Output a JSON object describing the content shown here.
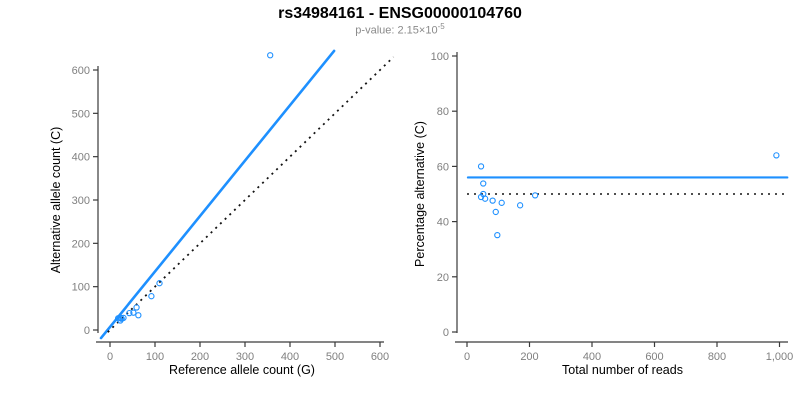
{
  "figure": {
    "title": "rs34984161 - ENSG00000104760",
    "subtitle_prefix": "p-value: 2.15×10",
    "subtitle_exponent": "-5"
  },
  "colors": {
    "accent_blue": "#1E90FF",
    "axis_line": "#3a3a3a",
    "tick_label": "#7f7f7f",
    "dotted_line": "#141414",
    "title_text": "#000000",
    "subtitle_text": "#8a8a8a"
  },
  "chart_data": [
    {
      "type": "scatter",
      "panel": "left",
      "xlabel": "Reference allele count (G)",
      "ylabel": "Alternative allele count (C)",
      "xlim": [
        0,
        600
      ],
      "ylim": [
        0,
        600
      ],
      "xticks": [
        0,
        100,
        200,
        300,
        400,
        500,
        600
      ],
      "xtick_labels": [
        "0",
        "100",
        "200",
        "300",
        "400",
        "500",
        "600"
      ],
      "yticks": [
        0,
        100,
        200,
        300,
        400,
        500,
        600
      ],
      "ytick_labels": [
        "0",
        "100",
        "200",
        "300",
        "400",
        "500",
        "600"
      ],
      "grid": false,
      "points": [
        [
          18,
          27
        ],
        [
          24,
          28
        ],
        [
          23,
          22
        ],
        [
          26,
          26
        ],
        [
          30,
          28
        ],
        [
          43,
          39
        ],
        [
          52,
          40
        ],
        [
          63,
          34
        ],
        [
          59,
          52
        ],
        [
          92,
          78
        ],
        [
          110,
          108
        ],
        [
          356,
          634
        ]
      ],
      "fit_line": {
        "style": "solid",
        "from": [
          -20,
          -18.5
        ],
        "to": [
          498,
          644
        ]
      },
      "identity_line": {
        "style": "dotted",
        "from": [
          -5,
          -5
        ],
        "to": [
          630,
          630
        ]
      }
    },
    {
      "type": "scatter",
      "panel": "right",
      "xlabel": "Total number of reads",
      "ylabel": "Percentage alternative (C)",
      "xlim": [
        0,
        1000
      ],
      "ylim": [
        0,
        100
      ],
      "xticks": [
        0,
        200,
        400,
        600,
        800,
        1000
      ],
      "xtick_labels": [
        "0",
        "200",
        "400",
        "600",
        "800",
        "1,000"
      ],
      "yticks": [
        0,
        20,
        40,
        60,
        80,
        100
      ],
      "ytick_labels": [
        "0",
        "20",
        "40",
        "60",
        "80",
        "100"
      ],
      "grid": false,
      "points": [
        [
          45,
          60
        ],
        [
          52,
          53.8
        ],
        [
          45,
          48.9
        ],
        [
          52,
          50
        ],
        [
          58,
          48.3
        ],
        [
          82,
          47.6
        ],
        [
          92,
          43.5
        ],
        [
          97,
          35.1
        ],
        [
          111,
          46.8
        ],
        [
          170,
          45.9
        ],
        [
          218,
          49.5
        ],
        [
          990,
          64
        ]
      ],
      "mean_line": {
        "style": "solid",
        "value": 56,
        "x_range": [
          3,
          1025
        ]
      },
      "null_line": {
        "style": "dotted",
        "value": 50,
        "x_range": [
          0,
          1025
        ]
      }
    }
  ]
}
